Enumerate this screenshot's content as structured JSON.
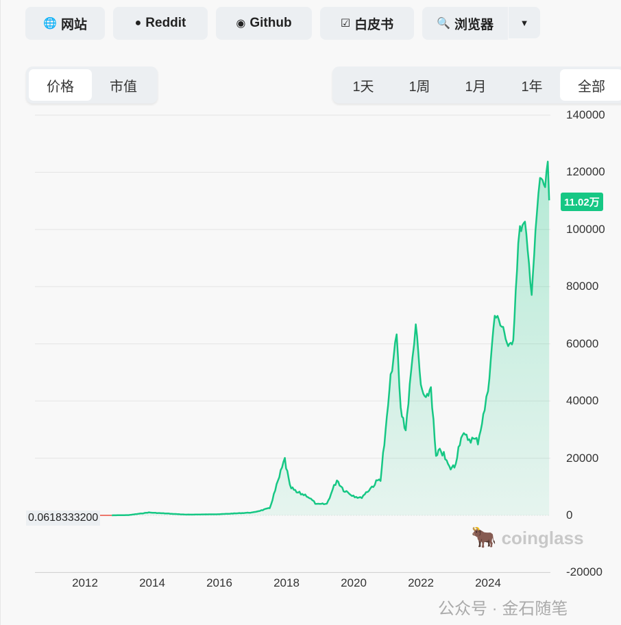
{
  "links": [
    {
      "label": "网站",
      "icon": "globe-icon",
      "glyph": "🌐"
    },
    {
      "label": "Reddit",
      "icon": "reddit-icon",
      "glyph": "●"
    },
    {
      "label": "Github",
      "icon": "github-icon",
      "glyph": "◉"
    },
    {
      "label": "白皮书",
      "icon": "document-check-icon",
      "glyph": "☑"
    },
    {
      "label": "浏览器",
      "icon": "search-globe-icon",
      "glyph": "🔍"
    }
  ],
  "dropdown_icon": "▼",
  "metric_tabs": [
    {
      "label": "价格",
      "active": true
    },
    {
      "label": "市值",
      "active": false
    }
  ],
  "range_tabs": [
    {
      "label": "1天"
    },
    {
      "label": "1周"
    },
    {
      "label": "1月"
    },
    {
      "label": "1年"
    },
    {
      "label": "全部",
      "active": true
    }
  ],
  "current_price_badge": "11.02万",
  "start_price_label": "0.0618333200",
  "watermark": "coinglass",
  "footer_watermark": "公众号 · 金石随笔",
  "colors": {
    "line": "#16c784",
    "fill": "#16c784",
    "start_line": "#e74c3c"
  },
  "chart_data": {
    "type": "area",
    "y_ticks": [
      "140000",
      "120000",
      "100000",
      "80000",
      "60000",
      "40000",
      "20000",
      "0",
      "-20000"
    ],
    "x_ticks": [
      "2012",
      "2014",
      "2016",
      "2018",
      "2020",
      "2022",
      "2024"
    ],
    "ylim": [
      -20000,
      140000
    ],
    "xlim": [
      2010.4,
      2025.8
    ],
    "grid": true,
    "series": [
      {
        "x": [
          2012.8,
          2013.3,
          2013.9,
          2014.5,
          2015.0,
          2016.0,
          2017.0,
          2017.5,
          2017.95,
          2018.1,
          2018.3,
          2018.6,
          2018.9,
          2019.2,
          2019.5,
          2019.7,
          2019.95,
          2020.2,
          2020.5,
          2020.8,
          2020.95,
          2021.1,
          2021.28,
          2021.4,
          2021.55,
          2021.75,
          2021.85,
          2022.0,
          2022.15,
          2022.3,
          2022.45,
          2022.6,
          2022.85,
          2023.0,
          2023.2,
          2023.4,
          2023.7,
          2023.9,
          2024.0,
          2024.2,
          2024.45,
          2024.6,
          2024.75,
          2024.9,
          2024.95,
          2025.1,
          2025.3,
          2025.45,
          2025.55,
          2025.7,
          2025.78,
          2025.82
        ],
        "y": [
          10,
          100,
          1000,
          600,
          250,
          400,
          1000,
          2500,
          19500,
          10000,
          8000,
          7000,
          3800,
          4000,
          12500,
          9000,
          7200,
          6000,
          9500,
          13000,
          29000,
          48000,
          63000,
          37000,
          30000,
          55000,
          67000,
          45000,
          40000,
          45000,
          20000,
          23000,
          16500,
          17000,
          28000,
          27000,
          26000,
          37000,
          44000,
          70000,
          66000,
          58000,
          62000,
          95000,
          100000,
          102000,
          78000,
          105000,
          118000,
          115000,
          124000,
          110200
        ]
      }
    ]
  }
}
